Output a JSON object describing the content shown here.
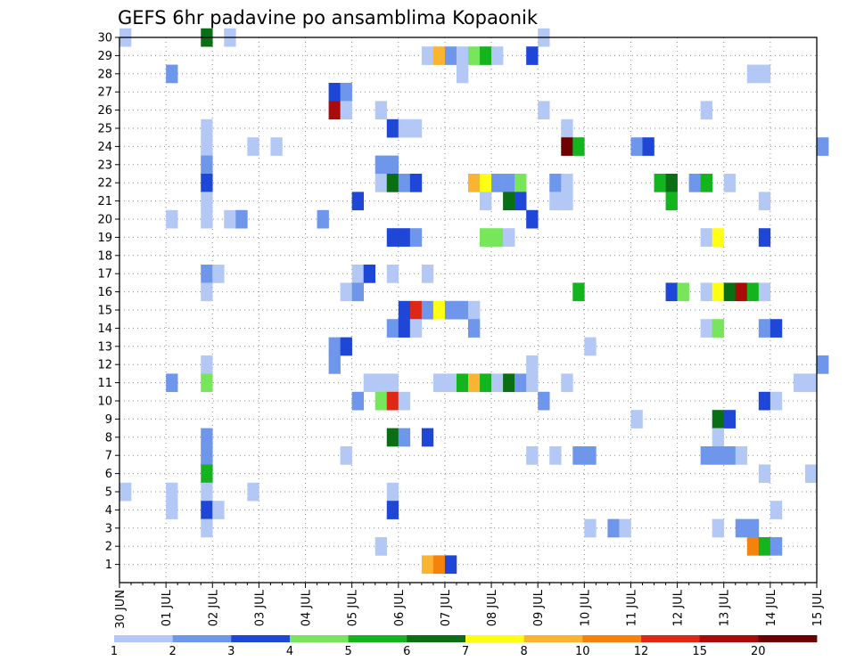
{
  "chart_data": {
    "type": "heatmap",
    "title": "GEFS 6hr padavine po ansamblima Kopaonik",
    "x_tick_labels": [
      "30 JUN",
      "01 JUL",
      "02 JUL",
      "03 JUL",
      "04 JUL",
      "05 JUL",
      "06 JUL",
      "07 JUL",
      "08 JUL",
      "09 JUL",
      "10 JUL",
      "11 JUL",
      "12 JUL",
      "13 JUL",
      "14 JUL",
      "15 JUL"
    ],
    "y_tick_labels": [
      "1",
      "2",
      "3",
      "4",
      "5",
      "6",
      "7",
      "8",
      "9",
      "10",
      "11",
      "12",
      "13",
      "14",
      "15",
      "16",
      "17",
      "18",
      "19",
      "20",
      "21",
      "22",
      "23",
      "24",
      "25",
      "26",
      "27",
      "28",
      "29",
      "30"
    ],
    "x_range_steps": [
      0,
      60
    ],
    "y_range": [
      0,
      30
    ],
    "grid": true,
    "colorbar": {
      "labels": [
        "1",
        "2",
        "3",
        "4",
        "5",
        "6",
        "7",
        "8",
        "10",
        "12",
        "15",
        "20"
      ],
      "colors": [
        "#b4c8f5",
        "#6e96eb",
        "#1e46d7",
        "#78e65a",
        "#14b41e",
        "#0a6e14",
        "#ffff14",
        "#fab432",
        "#f5820a",
        "#dc2814",
        "#aa0a0a",
        "#6e0000"
      ]
    },
    "cells_format": "[time_step_6h_from_30JUN_00Z, member, color_class_index]",
    "cells": [
      [
        0,
        30,
        0
      ],
      [
        7,
        30,
        5
      ],
      [
        9,
        30,
        0
      ],
      [
        36,
        30,
        0
      ],
      [
        26,
        29,
        0
      ],
      [
        27,
        29,
        7
      ],
      [
        28,
        29,
        1
      ],
      [
        29,
        29,
        0
      ],
      [
        30,
        29,
        3
      ],
      [
        31,
        29,
        4
      ],
      [
        32,
        29,
        0
      ],
      [
        35,
        29,
        2
      ],
      [
        4,
        28,
        1
      ],
      [
        29,
        28,
        0
      ],
      [
        54,
        28,
        0
      ],
      [
        55,
        28,
        0
      ],
      [
        18,
        27,
        2
      ],
      [
        19,
        27,
        1
      ],
      [
        18,
        26,
        10
      ],
      [
        19,
        26,
        0
      ],
      [
        22,
        26,
        0
      ],
      [
        36,
        26,
        0
      ],
      [
        50,
        26,
        0
      ],
      [
        7,
        25,
        0
      ],
      [
        23,
        25,
        2
      ],
      [
        24,
        25,
        0
      ],
      [
        25,
        25,
        0
      ],
      [
        38,
        25,
        0
      ],
      [
        7,
        24,
        0
      ],
      [
        11,
        24,
        0
      ],
      [
        13,
        24,
        0
      ],
      [
        38,
        24,
        11
      ],
      [
        39,
        24,
        4
      ],
      [
        44,
        24,
        1
      ],
      [
        45,
        24,
        2
      ],
      [
        60,
        24,
        1
      ],
      [
        7,
        23,
        1
      ],
      [
        22,
        23,
        1
      ],
      [
        23,
        23,
        1
      ],
      [
        7,
        22,
        2
      ],
      [
        22,
        22,
        0
      ],
      [
        23,
        22,
        5
      ],
      [
        24,
        22,
        1
      ],
      [
        25,
        22,
        2
      ],
      [
        30,
        22,
        7
      ],
      [
        31,
        22,
        6
      ],
      [
        32,
        22,
        1
      ],
      [
        33,
        22,
        1
      ],
      [
        34,
        22,
        3
      ],
      [
        37,
        22,
        1
      ],
      [
        38,
        22,
        0
      ],
      [
        46,
        22,
        4
      ],
      [
        47,
        22,
        5
      ],
      [
        49,
        22,
        1
      ],
      [
        50,
        22,
        4
      ],
      [
        52,
        22,
        0
      ],
      [
        7,
        21,
        0
      ],
      [
        20,
        21,
        2
      ],
      [
        31,
        21,
        0
      ],
      [
        33,
        21,
        5
      ],
      [
        34,
        21,
        2
      ],
      [
        37,
        21,
        0
      ],
      [
        38,
        21,
        0
      ],
      [
        47,
        21,
        4
      ],
      [
        55,
        21,
        0
      ],
      [
        4,
        20,
        0
      ],
      [
        7,
        20,
        0
      ],
      [
        9,
        20,
        0
      ],
      [
        10,
        20,
        1
      ],
      [
        17,
        20,
        1
      ],
      [
        35,
        20,
        2
      ],
      [
        23,
        19,
        2
      ],
      [
        24,
        19,
        2
      ],
      [
        25,
        19,
        1
      ],
      [
        31,
        19,
        3
      ],
      [
        32,
        19,
        3
      ],
      [
        33,
        19,
        0
      ],
      [
        50,
        19,
        0
      ],
      [
        51,
        19,
        6
      ],
      [
        55,
        19,
        2
      ],
      [
        7,
        17,
        1
      ],
      [
        8,
        17,
        0
      ],
      [
        20,
        17,
        0
      ],
      [
        21,
        17,
        2
      ],
      [
        23,
        17,
        0
      ],
      [
        26,
        17,
        0
      ],
      [
        7,
        16,
        0
      ],
      [
        19,
        16,
        0
      ],
      [
        20,
        16,
        1
      ],
      [
        39,
        16,
        4
      ],
      [
        47,
        16,
        2
      ],
      [
        48,
        16,
        3
      ],
      [
        50,
        16,
        0
      ],
      [
        51,
        16,
        6
      ],
      [
        52,
        16,
        5
      ],
      [
        53,
        16,
        10
      ],
      [
        54,
        16,
        4
      ],
      [
        55,
        16,
        0
      ],
      [
        24,
        15,
        2
      ],
      [
        25,
        15,
        9
      ],
      [
        26,
        15,
        1
      ],
      [
        27,
        15,
        6
      ],
      [
        28,
        15,
        1
      ],
      [
        29,
        15,
        1
      ],
      [
        30,
        15,
        0
      ],
      [
        23,
        14,
        1
      ],
      [
        24,
        14,
        2
      ],
      [
        25,
        14,
        0
      ],
      [
        30,
        14,
        1
      ],
      [
        50,
        14,
        0
      ],
      [
        51,
        14,
        3
      ],
      [
        55,
        14,
        1
      ],
      [
        56,
        14,
        2
      ],
      [
        18,
        13,
        1
      ],
      [
        19,
        13,
        2
      ],
      [
        40,
        13,
        0
      ],
      [
        7,
        12,
        0
      ],
      [
        18,
        12,
        1
      ],
      [
        35,
        12,
        0
      ],
      [
        60,
        12,
        1
      ],
      [
        4,
        11,
        1
      ],
      [
        7,
        11,
        3
      ],
      [
        21,
        11,
        0
      ],
      [
        22,
        11,
        0
      ],
      [
        23,
        11,
        0
      ],
      [
        27,
        11,
        0
      ],
      [
        28,
        11,
        0
      ],
      [
        29,
        11,
        4
      ],
      [
        30,
        11,
        7
      ],
      [
        31,
        11,
        4
      ],
      [
        32,
        11,
        0
      ],
      [
        33,
        11,
        5
      ],
      [
        34,
        11,
        1
      ],
      [
        35,
        11,
        0
      ],
      [
        38,
        11,
        0
      ],
      [
        58,
        11,
        0
      ],
      [
        59,
        11,
        0
      ],
      [
        20,
        10,
        1
      ],
      [
        22,
        10,
        3
      ],
      [
        23,
        10,
        9
      ],
      [
        24,
        10,
        0
      ],
      [
        36,
        10,
        1
      ],
      [
        55,
        10,
        2
      ],
      [
        56,
        10,
        0
      ],
      [
        44,
        9,
        0
      ],
      [
        51,
        9,
        5
      ],
      [
        52,
        9,
        2
      ],
      [
        7,
        8,
        1
      ],
      [
        23,
        8,
        5
      ],
      [
        24,
        8,
        1
      ],
      [
        26,
        8,
        2
      ],
      [
        51,
        8,
        0
      ],
      [
        7,
        7,
        1
      ],
      [
        19,
        7,
        0
      ],
      [
        35,
        7,
        0
      ],
      [
        37,
        7,
        0
      ],
      [
        39,
        7,
        1
      ],
      [
        40,
        7,
        1
      ],
      [
        50,
        7,
        1
      ],
      [
        51,
        7,
        1
      ],
      [
        52,
        7,
        1
      ],
      [
        53,
        7,
        0
      ],
      [
        7,
        6,
        4
      ],
      [
        55,
        6,
        0
      ],
      [
        59,
        6,
        0
      ],
      [
        0,
        5,
        0
      ],
      [
        4,
        5,
        0
      ],
      [
        7,
        5,
        0
      ],
      [
        11,
        5,
        0
      ],
      [
        23,
        5,
        0
      ],
      [
        4,
        4,
        0
      ],
      [
        7,
        4,
        2
      ],
      [
        8,
        4,
        0
      ],
      [
        23,
        4,
        2
      ],
      [
        56,
        4,
        0
      ],
      [
        7,
        3,
        0
      ],
      [
        40,
        3,
        0
      ],
      [
        42,
        3,
        1
      ],
      [
        43,
        3,
        0
      ],
      [
        51,
        3,
        0
      ],
      [
        53,
        3,
        1
      ],
      [
        54,
        3,
        1
      ],
      [
        22,
        2,
        0
      ],
      [
        54,
        2,
        8
      ],
      [
        55,
        2,
        4
      ],
      [
        56,
        2,
        1
      ],
      [
        26,
        1,
        7
      ],
      [
        27,
        1,
        8
      ],
      [
        28,
        1,
        2
      ]
    ]
  }
}
